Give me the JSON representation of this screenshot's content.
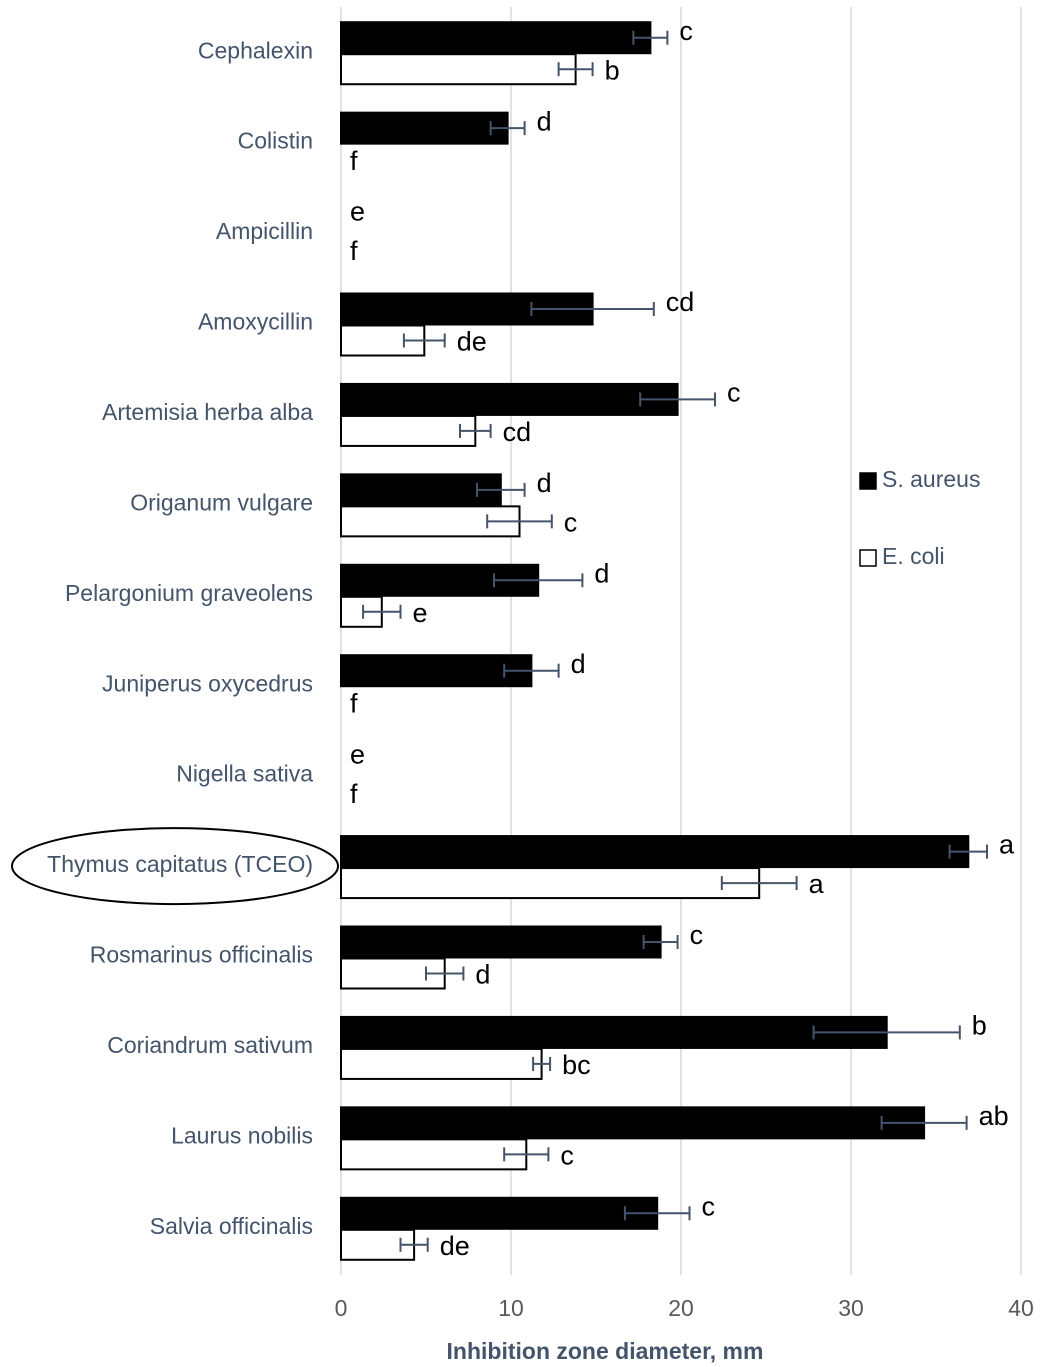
{
  "chart_data": {
    "type": "bar",
    "orientation": "horizontal",
    "xlabel": "Inhibition zone diameter, mm",
    "categories": [
      "Cephalexin",
      "Colistin",
      "Ampicillin",
      "Amoxycillin",
      "Artemisia herba alba",
      "Origanum vulgare",
      "Pelargonium graveolens",
      "Juniperus oxycedrus",
      "Nigella sativa",
      "Thymus capitatus (TCEO)",
      "Rosmarinus officinalis",
      "Coriandrum sativum",
      "Laurus nobilis",
      "Salvia officinalis"
    ],
    "series": [
      {
        "name": "S. aureus",
        "color": "#000000",
        "values": [
          18.2,
          9.8,
          0,
          14.8,
          19.8,
          9.4,
          11.6,
          11.2,
          0,
          36.9,
          18.8,
          32.1,
          34.3,
          18.6
        ],
        "errors": [
          1.0,
          1.0,
          0,
          3.6,
          2.2,
          1.4,
          2.6,
          1.6,
          0,
          1.1,
          1.0,
          4.3,
          2.5,
          1.9
        ],
        "labels": [
          "c",
          "d",
          "e",
          "cd",
          "c",
          "d",
          "d",
          "d",
          "e",
          "a",
          "c",
          "b",
          "ab",
          "c"
        ]
      },
      {
        "name": "E. coli",
        "color": "#ffffff",
        "values": [
          13.8,
          0,
          0,
          4.9,
          7.9,
          10.5,
          2.4,
          0,
          0,
          24.6,
          6.1,
          11.8,
          10.9,
          4.3
        ],
        "errors": [
          1.0,
          0,
          0,
          1.2,
          0.9,
          1.9,
          1.1,
          0,
          0,
          2.2,
          1.1,
          0.5,
          1.3,
          0.8
        ],
        "labels": [
          "b",
          "f",
          "f",
          "de",
          "cd",
          "c",
          "e",
          "f",
          "f",
          "a",
          "d",
          "bc",
          "c",
          "de"
        ]
      }
    ],
    "xlim": [
      0,
      40
    ],
    "xticks": [
      0,
      10,
      20,
      30,
      40
    ],
    "grid": true,
    "highlight": "Thymus capitatus (TCEO)"
  }
}
